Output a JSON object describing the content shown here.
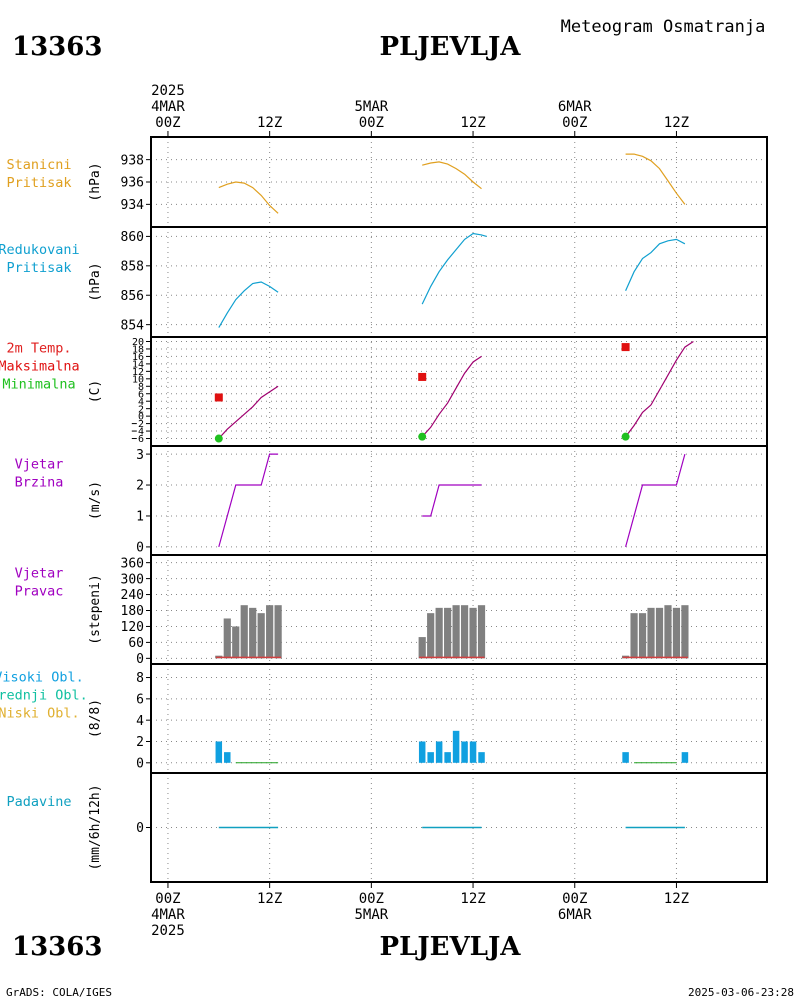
{
  "header": {
    "station_id": "13363",
    "station_name": "PLJEVLJA",
    "product": "Meteogram Osmatranja"
  },
  "footer": {
    "credit": "GrADS: COLA/IGES",
    "timestamp": "2025-03-06-23:28"
  },
  "colors": {
    "pressure": "#e0a020",
    "reduced": "#10a0d0",
    "temp_label": "#e02020",
    "maxmarker": "#e01010",
    "minmarker": "#20c020",
    "tempcurve": "#a00070",
    "wind": "#a000c0",
    "winddir_bar": "#808080",
    "winddir_base": "#d04040",
    "cloud_high": "#10a0e0",
    "cloud_mid": "#10c0a0",
    "cloud_low": "#e0b030",
    "precip": "#10a0c0"
  },
  "time_axis": {
    "top_labels": [
      {
        "t": 0,
        "lines": [
          "2025",
          "4MAR",
          "00Z"
        ]
      },
      {
        "t": 12,
        "lines": [
          "12Z"
        ]
      },
      {
        "t": 24,
        "lines": [
          "5MAR",
          "00Z"
        ]
      },
      {
        "t": 36,
        "lines": [
          "12Z"
        ]
      },
      {
        "t": 48,
        "lines": [
          "6MAR",
          "00Z"
        ]
      },
      {
        "t": 60,
        "lines": [
          "12Z"
        ]
      }
    ],
    "bottom_labels": [
      {
        "t": 0,
        "lines": [
          "00Z",
          "4MAR",
          "2025"
        ]
      },
      {
        "t": 12,
        "lines": [
          "12Z"
        ]
      },
      {
        "t": 24,
        "lines": [
          "00Z",
          "5MAR"
        ]
      },
      {
        "t": 36,
        "lines": [
          "12Z"
        ]
      },
      {
        "t": 48,
        "lines": [
          "00Z",
          "6MAR"
        ]
      },
      {
        "t": 60,
        "lines": [
          "12Z"
        ]
      }
    ]
  },
  "chart_data": [
    {
      "type": "line",
      "id": "station_pressure",
      "label_lines": [
        "Stanicni",
        "Pritisak"
      ],
      "label_color": "pressure",
      "unit": "(hPa)",
      "ylim": [
        932.6,
        939.4
      ],
      "yticks": [
        934,
        936,
        938
      ],
      "series": [
        {
          "color": "pressure",
          "segments": [
            [
              [
                6,
                935.5
              ],
              [
                7,
                935.8
              ],
              [
                8,
                936.0
              ],
              [
                9,
                935.9
              ],
              [
                10,
                935.5
              ],
              [
                11,
                934.8
              ],
              [
                12,
                933.9
              ],
              [
                13,
                933.2
              ]
            ],
            [
              [
                30,
                937.5
              ],
              [
                31,
                937.7
              ],
              [
                32,
                937.8
              ],
              [
                33,
                937.6
              ],
              [
                34,
                937.2
              ],
              [
                35,
                936.7
              ],
              [
                36,
                936.0
              ],
              [
                37,
                935.4
              ]
            ],
            [
              [
                54,
                938.5
              ],
              [
                55,
                938.5
              ],
              [
                56,
                938.3
              ],
              [
                57,
                937.9
              ],
              [
                58,
                937.2
              ],
              [
                59,
                936.1
              ],
              [
                60,
                935.0
              ],
              [
                61,
                934.0
              ]
            ]
          ]
        }
      ]
    },
    {
      "type": "line",
      "id": "reduced_pressure",
      "label_lines": [
        "Redukovani",
        "Pritisak"
      ],
      "label_color": "reduced",
      "unit": "(hPa)",
      "ylim": [
        853.5,
        860.3
      ],
      "yticks": [
        854,
        856,
        858,
        860
      ],
      "series": [
        {
          "color": "reduced",
          "segments": [
            [
              [
                6,
                853.8
              ],
              [
                7,
                854.8
              ],
              [
                8,
                855.7
              ],
              [
                9,
                856.3
              ],
              [
                10,
                856.8
              ],
              [
                11,
                856.9
              ],
              [
                12,
                856.6
              ],
              [
                13,
                856.2
              ]
            ],
            [
              [
                30,
                855.4
              ],
              [
                31,
                856.6
              ],
              [
                32,
                857.6
              ],
              [
                33,
                858.4
              ],
              [
                34,
                859.1
              ],
              [
                35,
                859.8
              ],
              [
                36,
                860.2
              ],
              [
                37,
                860.1
              ],
              [
                37.6,
                860.0
              ]
            ],
            [
              [
                54,
                856.3
              ],
              [
                55,
                857.6
              ],
              [
                56,
                858.5
              ],
              [
                57,
                858.9
              ],
              [
                58,
                859.5
              ],
              [
                59,
                859.7
              ],
              [
                60,
                859.8
              ],
              [
                61,
                859.5
              ]
            ]
          ]
        }
      ]
    },
    {
      "type": "line",
      "id": "temperature",
      "label_lines": [
        "2m Temp.",
        "Maksimalna",
        "Minimalna"
      ],
      "label_line_colors": [
        "temp_label",
        "maxmarker",
        "minmarker"
      ],
      "unit": "(C)",
      "ylim": [
        -7.2,
        20.4
      ],
      "yticks": [
        -6,
        -4,
        -2,
        0,
        2,
        4,
        6,
        8,
        10,
        12,
        14,
        16,
        18,
        20
      ],
      "ytick_labels": [
        "6",
        "4",
        "2",
        "0",
        "2",
        "4",
        "6",
        "8",
        "10",
        "12",
        "14",
        "16",
        "18",
        "20"
      ],
      "series": [
        {
          "color": "tempcurve",
          "segments": [
            [
              [
                6,
                -6.0
              ],
              [
                7,
                -3.5
              ],
              [
                8,
                -1.5
              ],
              [
                9,
                0.5
              ],
              [
                10,
                2.5
              ],
              [
                11,
                5.0
              ],
              [
                12,
                6.5
              ],
              [
                13,
                8.0
              ]
            ],
            [
              [
                30,
                -5.5
              ],
              [
                31,
                -3.0
              ],
              [
                32,
                0.5
              ],
              [
                33,
                3.5
              ],
              [
                34,
                7.5
              ],
              [
                35,
                11.5
              ],
              [
                36,
                14.5
              ],
              [
                37,
                16.0
              ]
            ],
            [
              [
                54,
                -5.5
              ],
              [
                55,
                -2.5
              ],
              [
                56,
                1.0
              ],
              [
                57,
                3.0
              ],
              [
                58,
                7.0
              ],
              [
                59,
                11.0
              ],
              [
                60,
                15.0
              ],
              [
                61,
                18.5
              ],
              [
                62,
                20.0
              ]
            ]
          ]
        }
      ],
      "maxima": [
        [
          6,
          5.0
        ],
        [
          30,
          10.5
        ],
        [
          54,
          18.5
        ]
      ],
      "minima": [
        [
          6,
          -6.0
        ],
        [
          30,
          -5.5
        ],
        [
          54,
          -5.5
        ]
      ]
    },
    {
      "type": "line",
      "id": "wind_speed",
      "label_lines": [
        "Vjetar",
        "Brzina"
      ],
      "label_color": "wind",
      "unit": "(m/s)",
      "ylim": [
        -0.1,
        3.1
      ],
      "yticks": [
        0,
        1,
        2,
        3
      ],
      "series": [
        {
          "color": "wind",
          "step": true,
          "segments": [
            [
              [
                6,
                0
              ],
              [
                8,
                2
              ],
              [
                9,
                2
              ],
              [
                10,
                2
              ],
              [
                11,
                2
              ],
              [
                12,
                3
              ],
              [
                13,
                3
              ]
            ],
            [
              [
                30,
                1
              ],
              [
                31,
                1
              ],
              [
                32,
                2
              ],
              [
                33,
                2
              ],
              [
                34,
                2
              ],
              [
                35,
                2
              ],
              [
                36,
                2
              ],
              [
                37,
                2
              ]
            ],
            [
              [
                54,
                0
              ],
              [
                56,
                2
              ],
              [
                57,
                2
              ],
              [
                58,
                2
              ],
              [
                59,
                2
              ],
              [
                60,
                2
              ],
              [
                61,
                3
              ]
            ]
          ]
        }
      ]
    },
    {
      "type": "bar",
      "id": "wind_direction",
      "label_lines": [
        "Vjetar",
        "Pravac"
      ],
      "label_color": "wind",
      "unit": "(stepeni)",
      "ylim": [
        -10,
        370
      ],
      "yticks": [
        0,
        60,
        120,
        180,
        240,
        300,
        360
      ],
      "bars": [
        {
          "t": 6,
          "v": 10
        },
        {
          "t": 7,
          "v": 150
        },
        {
          "t": 8,
          "v": 120
        },
        {
          "t": 9,
          "v": 200
        },
        {
          "t": 10,
          "v": 190
        },
        {
          "t": 11,
          "v": 170
        },
        {
          "t": 12,
          "v": 200
        },
        {
          "t": 13,
          "v": 200
        },
        {
          "t": 30,
          "v": 80
        },
        {
          "t": 31,
          "v": 170
        },
        {
          "t": 32,
          "v": 190
        },
        {
          "t": 33,
          "v": 190
        },
        {
          "t": 34,
          "v": 200
        },
        {
          "t": 35,
          "v": 200
        },
        {
          "t": 36,
          "v": 190
        },
        {
          "t": 37,
          "v": 200
        },
        {
          "t": 54,
          "v": 10
        },
        {
          "t": 55,
          "v": 170
        },
        {
          "t": 56,
          "v": 170
        },
        {
          "t": 57,
          "v": 190
        },
        {
          "t": 58,
          "v": 190
        },
        {
          "t": 59,
          "v": 200
        },
        {
          "t": 60,
          "v": 190
        },
        {
          "t": 61,
          "v": 200
        }
      ]
    },
    {
      "type": "bar",
      "id": "clouds",
      "label_lines": [
        "Visoki Obl.",
        "Srednji Obl.",
        "Niski Obl."
      ],
      "label_line_colors": [
        "cloud_high",
        "cloud_mid",
        "cloud_low"
      ],
      "unit": "(8/8)",
      "ylim": [
        -0.3,
        8.8
      ],
      "yticks": [
        0,
        2,
        4,
        6,
        8
      ],
      "bars": [
        {
          "t": 6,
          "v": 2
        },
        {
          "t": 7,
          "v": 1
        },
        {
          "t": 30,
          "v": 2
        },
        {
          "t": 31,
          "v": 1
        },
        {
          "t": 32,
          "v": 2
        },
        {
          "t": 33,
          "v": 1
        },
        {
          "t": 34,
          "v": 3
        },
        {
          "t": 35,
          "v": 2
        },
        {
          "t": 36,
          "v": 2
        },
        {
          "t": 37,
          "v": 1
        },
        {
          "t": 54,
          "v": 1
        },
        {
          "t": 61,
          "v": 1
        }
      ],
      "baseline_ranges": [
        [
          8,
          13
        ],
        [
          55,
          60
        ]
      ]
    },
    {
      "type": "line",
      "id": "precipitation",
      "label_lines": [
        "Padavine"
      ],
      "label_color": "precip",
      "unit": "(mm/6h/12h)",
      "ylim": [
        -1,
        1
      ],
      "yticks": [
        0
      ],
      "series": [
        {
          "color": "precip",
          "segments": [
            [
              [
                6,
                0
              ],
              [
                13,
                0
              ]
            ],
            [
              [
                30,
                0
              ],
              [
                37,
                0
              ]
            ],
            [
              [
                54,
                0
              ],
              [
                61,
                0
              ]
            ]
          ]
        }
      ]
    }
  ]
}
